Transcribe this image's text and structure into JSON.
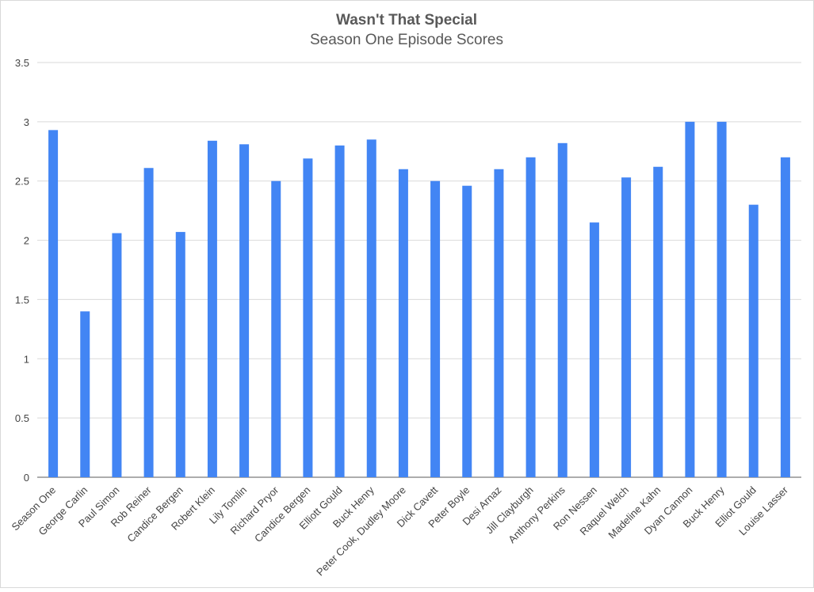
{
  "chart_data": {
    "type": "bar",
    "title": "Wasn't That Special",
    "subtitle": "Season One Episode Scores",
    "xlabel": "",
    "ylabel": "",
    "ylim": [
      0,
      3.5
    ],
    "yticks": [
      "0",
      "0.5",
      "1",
      "1.5",
      "2",
      "2.5",
      "3",
      "3.5"
    ],
    "grid": true,
    "legend": "none",
    "bar_color": "#4285f4",
    "categories": [
      "Season One",
      "George Carlin",
      "Paul Simon",
      "Rob Reiner",
      "Candice Bergen",
      "Robert Klein",
      "Lily Tomlin",
      "Richard Pryor",
      "Candice Bergen",
      "Elliott Gould",
      "Buck Henry",
      "Peter Cook, Dudley Moore",
      "Dick Cavett",
      "Peter Boyle",
      "Desi Arnaz",
      "Jill Clayburgh",
      "Anthony Perkins",
      "Ron Nessen",
      "Raquel Welch",
      "Madeline Kahn",
      "Dyan Cannon",
      "Buck Henry",
      "Elliot Gould",
      "Louise Lasser"
    ],
    "values": [
      2.93,
      1.4,
      2.06,
      2.61,
      2.07,
      2.84,
      2.81,
      2.5,
      2.69,
      2.8,
      2.85,
      2.6,
      2.5,
      2.46,
      2.6,
      2.7,
      2.82,
      2.15,
      2.53,
      2.62,
      3.0,
      3.0,
      2.3,
      2.7
    ]
  }
}
